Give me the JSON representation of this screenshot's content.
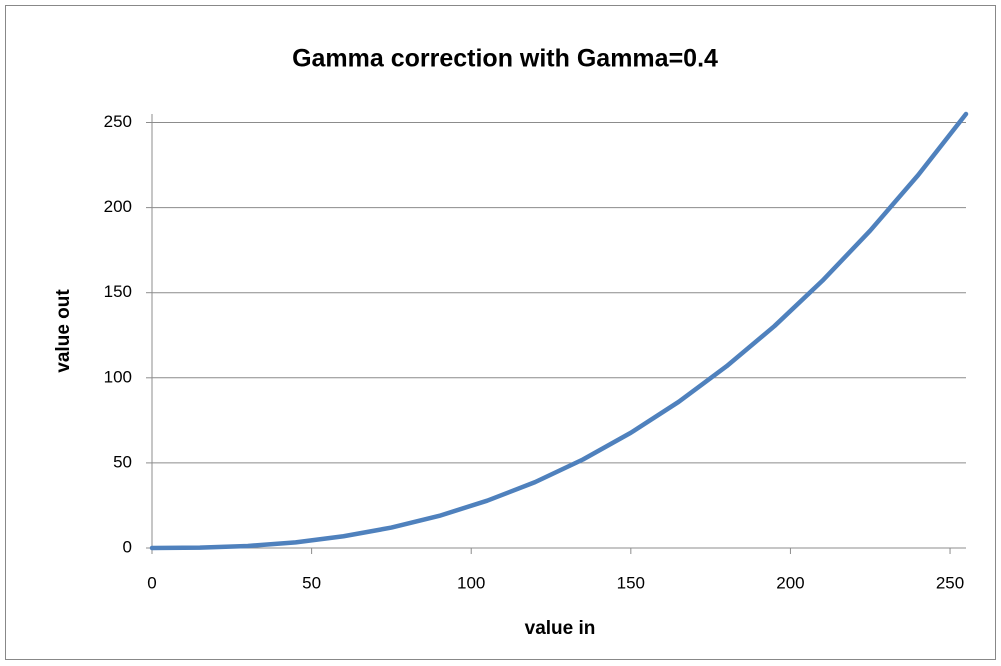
{
  "chart_data": {
    "type": "line",
    "title": "Gamma correction with Gamma=0.4",
    "xlabel": "value in",
    "ylabel": "value out",
    "x": [
      0,
      15,
      30,
      45,
      60,
      75,
      90,
      105,
      120,
      135,
      150,
      165,
      180,
      195,
      210,
      225,
      240,
      255
    ],
    "series": [
      {
        "name": "value out",
        "color": "#4f81bd",
        "values": [
          0,
          0.2,
          1.2,
          3.3,
          6.9,
          12.0,
          18.9,
          27.8,
          38.7,
          52.0,
          67.7,
          85.9,
          106.8,
          130.4,
          157.0,
          186.5,
          219.1,
          255
        ]
      }
    ],
    "xlim": [
      0,
      255
    ],
    "ylim": [
      0,
      255
    ],
    "xticks": [
      0,
      50,
      100,
      150,
      200,
      250
    ],
    "yticks": [
      0,
      50,
      100,
      150,
      200,
      250
    ],
    "grid": true
  }
}
